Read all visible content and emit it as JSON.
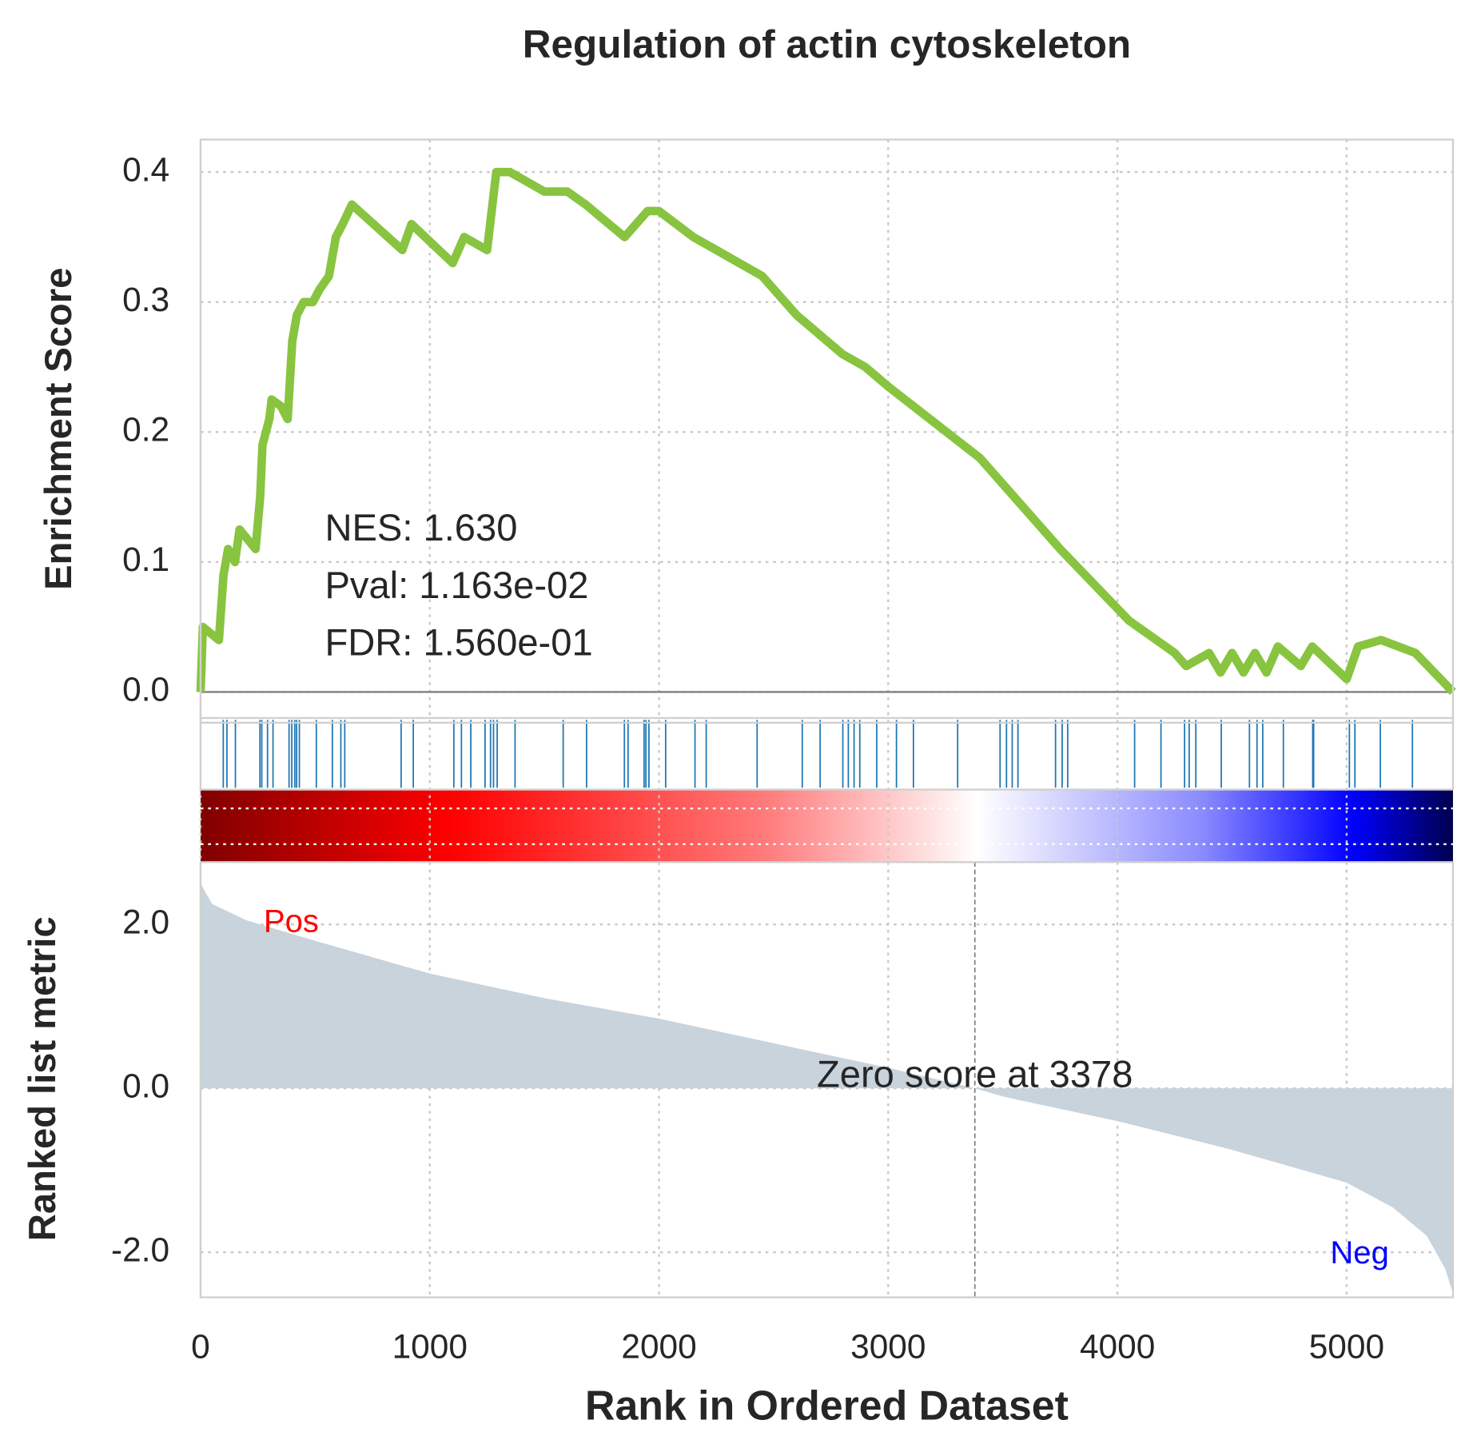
{
  "chart_data": [
    {
      "type": "line",
      "title": "Regulation of actin cytoskeleton",
      "ylabel": "Enrichment Score",
      "color": "#88c440",
      "hit_color": "#1f77b4",
      "grid": true,
      "xlim": [
        0,
        5464
      ],
      "xticks": [
        0,
        1000,
        2000,
        3000,
        4000,
        5000
      ],
      "ylim": [
        -0.02,
        0.425
      ],
      "yticks": [
        {
          "value": 0,
          "label": "0.0"
        },
        0.1,
        0.2,
        0.3,
        0.4
      ],
      "annotations": [
        "NES: 1.630",
        "Pval: 1.163e-02",
        "FDR: 1.560e-01"
      ],
      "x": [
        0,
        10,
        80,
        100,
        120,
        150,
        170,
        240,
        260,
        270,
        300,
        310,
        350,
        380,
        400,
        420,
        450,
        490,
        520,
        560,
        590,
        620,
        660,
        880,
        920,
        1100,
        1150,
        1250,
        1290,
        1350,
        1500,
        1600,
        1680,
        1850,
        1950,
        2000,
        2150,
        2450,
        2600,
        2700,
        2800,
        2900,
        3000,
        3400,
        3600,
        3750,
        4050,
        4250,
        4300,
        4400,
        4450,
        4500,
        4550,
        4600,
        4650,
        4700,
        4800,
        4850,
        5000,
        5050,
        5150,
        5300,
        5464
      ],
      "values": [
        0,
        0.05,
        0.04,
        0.09,
        0.11,
        0.1,
        0.125,
        0.11,
        0.15,
        0.19,
        0.21,
        0.225,
        0.22,
        0.21,
        0.27,
        0.29,
        0.3,
        0.3,
        0.31,
        0.32,
        0.35,
        0.36,
        0.375,
        0.34,
        0.36,
        0.33,
        0.35,
        0.34,
        0.4,
        0.4,
        0.385,
        0.385,
        0.375,
        0.35,
        0.37,
        0.37,
        0.35,
        0.32,
        0.29,
        0.275,
        0.26,
        0.25,
        0.235,
        0.18,
        0.14,
        0.11,
        0.055,
        0.03,
        0.02,
        0.03,
        0.015,
        0.03,
        0.015,
        0.03,
        0.015,
        0.035,
        0.02,
        0.035,
        0.01,
        0.035,
        0.04,
        0.03,
        0
      ],
      "hits": [
        99,
        115,
        152,
        259,
        267,
        292,
        316,
        386,
        398,
        411,
        419,
        431,
        505,
        575,
        612,
        629,
        875,
        928,
        1105,
        1138,
        1179,
        1241,
        1265,
        1278,
        1294,
        1372,
        1582,
        1684,
        1849,
        1865,
        1935,
        1943,
        1956,
        2029,
        2157,
        2206,
        2428,
        2625,
        2703,
        2802,
        2826,
        2851,
        2876,
        2950,
        3036,
        3110,
        3303,
        3488,
        3516,
        3541,
        3566,
        3730,
        3759,
        3783,
        4075,
        4190,
        4293,
        4313,
        4342,
        4453,
        4576,
        4609,
        4634,
        4724,
        4852,
        4856,
        5012,
        5036,
        5147,
        5287
      ]
    },
    {
      "type": "area",
      "ylabel": "Ranked list metric",
      "xlabel": "Rank in Ordered Dataset",
      "color": "#c8d3dc",
      "grid": true,
      "xlim": [
        0,
        5464
      ],
      "xticks": [
        0,
        1000,
        2000,
        3000,
        4000,
        5000
      ],
      "ylim": [
        -2.55,
        2.76
      ],
      "yticks": [
        {
          "value": -2,
          "label": "-2.0"
        },
        {
          "value": 0,
          "label": "0.0"
        },
        {
          "value": 2,
          "label": "2.0"
        }
      ],
      "x": [
        0,
        50,
        200,
        500,
        1000,
        1500,
        2000,
        2500,
        3000,
        3378,
        3500,
        4000,
        4500,
        5000,
        5200,
        5350,
        5430,
        5464
      ],
      "values": [
        2.5,
        2.25,
        2.05,
        1.8,
        1.4,
        1.1,
        0.85,
        0.55,
        0.25,
        0,
        -0.1,
        -0.4,
        -0.75,
        -1.15,
        -1.45,
        -1.8,
        -2.2,
        -2.5
      ],
      "pos_label": "Pos",
      "pos_color": "#ff0000",
      "neg_label": "Neg",
      "neg_color": "#0000ff",
      "zero_score": 3378,
      "zero_label": "Zero score at 3378"
    }
  ]
}
